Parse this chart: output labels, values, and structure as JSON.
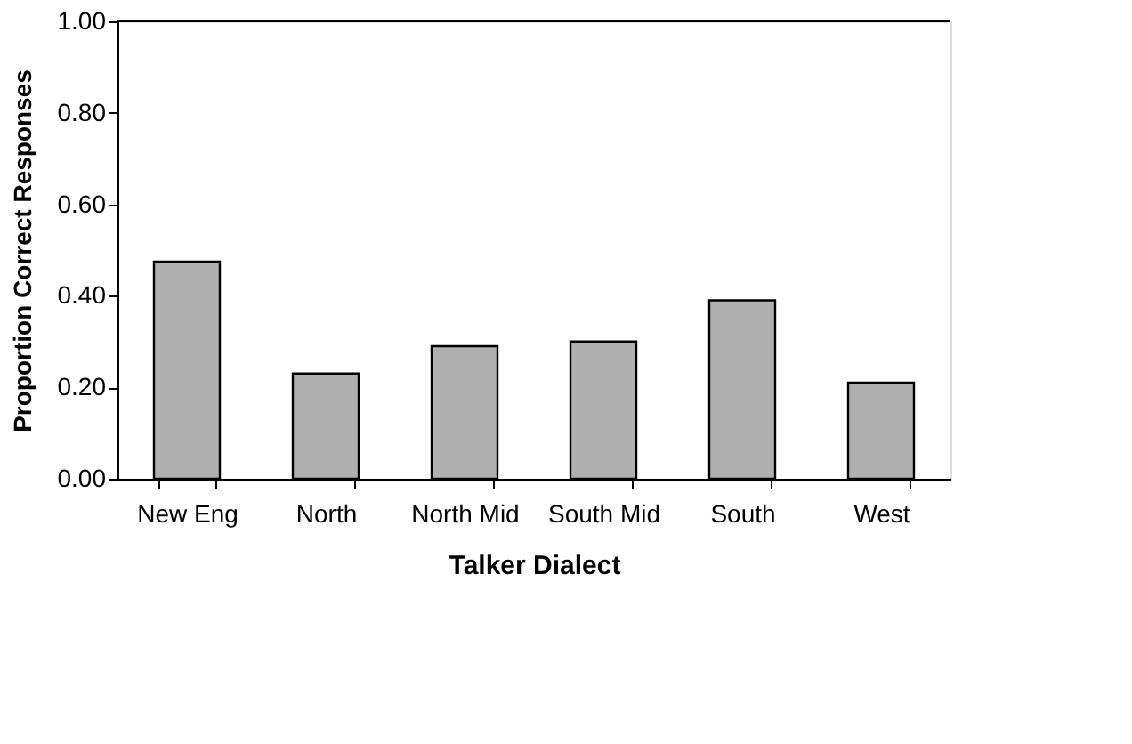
{
  "chart_data": {
    "type": "bar",
    "xlabel": "Talker Dialect",
    "ylabel": "Proportion Correct Responses",
    "categories": [
      "New Eng",
      "North",
      "North Mid",
      "South Mid",
      "South",
      "West"
    ],
    "values": [
      0.475,
      0.23,
      0.29,
      0.3,
      0.39,
      0.21
    ],
    "color": "#b0b0b0",
    "ylim": [
      0,
      1
    ],
    "yticks": [
      {
        "value": 0,
        "label": "0.00"
      },
      {
        "value": 0.2,
        "label": "0.20"
      },
      {
        "value": 0.4,
        "label": "0.40"
      },
      {
        "value": 0.6,
        "label": "0.60"
      },
      {
        "value": 0.8,
        "label": "0.80"
      },
      {
        "value": 1,
        "label": "1.00"
      }
    ],
    "grid": false
  }
}
